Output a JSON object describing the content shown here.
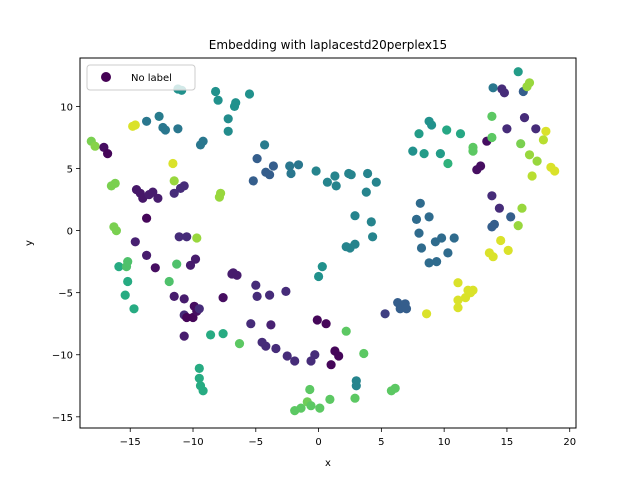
{
  "chart_data": {
    "type": "scatter",
    "title": "Embedding with laplacestd20perplex15",
    "xlabel": "x",
    "ylabel": "y",
    "xlim": [
      -19.0,
      20.5
    ],
    "ylim": [
      -15.9,
      13.9
    ],
    "xticks": [
      -15,
      -10,
      -5,
      0,
      5,
      10,
      15,
      20
    ],
    "yticks": [
      -15,
      -10,
      -5,
      0,
      5,
      10
    ],
    "legend": {
      "entries": [
        "No label"
      ],
      "placement": "top-left"
    },
    "colormap": "viridis",
    "points": [
      [
        -18.1,
        7.2,
        0.8
      ],
      [
        -17.8,
        6.8,
        0.82
      ],
      [
        -17.1,
        6.7,
        0.05
      ],
      [
        -16.8,
        6.2,
        0.02
      ],
      [
        -16.5,
        3.6,
        0.8
      ],
      [
        -16.2,
        3.8,
        0.8
      ],
      [
        -16.3,
        0.3,
        0.8
      ],
      [
        -16.1,
        0.0,
        0.8
      ],
      [
        -15.9,
        -2.9,
        0.62
      ],
      [
        -15.3,
        -2.9,
        0.72
      ],
      [
        -15.2,
        -2.5,
        0.72
      ],
      [
        -15.2,
        -4.1,
        0.62
      ],
      [
        -15.4,
        -5.2,
        0.62
      ],
      [
        -14.7,
        -6.3,
        0.62
      ],
      [
        -14.8,
        8.4,
        0.95
      ],
      [
        -14.6,
        8.5,
        0.95
      ],
      [
        -14.5,
        3.3,
        0.08
      ],
      [
        -14.2,
        3.0,
        0.08
      ],
      [
        -14.0,
        2.6,
        0.08
      ],
      [
        -13.7,
        1.0,
        0.02
      ],
      [
        -14.6,
        -0.9,
        0.12
      ],
      [
        -13.7,
        -2.0,
        0.1
      ],
      [
        -13.0,
        -3.0,
        0.05
      ],
      [
        -13.7,
        8.8,
        0.4
      ],
      [
        -13.5,
        2.9,
        0.1
      ],
      [
        -13.2,
        3.1,
        0.1
      ],
      [
        -12.8,
        2.6,
        0.1
      ],
      [
        -12.7,
        9.2,
        0.42
      ],
      [
        -12.4,
        8.3,
        0.4
      ],
      [
        -12.2,
        8.1,
        0.4
      ],
      [
        -11.6,
        5.4,
        0.95
      ],
      [
        -11.5,
        4.0,
        0.85
      ],
      [
        -11.9,
        -4.1,
        0.72
      ],
      [
        -11.2,
        8.2,
        0.4
      ],
      [
        -11.2,
        11.4,
        0.5
      ],
      [
        -10.9,
        11.3,
        0.5
      ],
      [
        -11.5,
        3.0,
        0.15
      ],
      [
        -11.0,
        3.4,
        0.15
      ],
      [
        -10.7,
        3.6,
        0.15
      ],
      [
        -11.1,
        -0.5,
        0.15
      ],
      [
        -10.5,
        -0.5,
        0.15
      ],
      [
        -11.3,
        -2.7,
        0.72
      ],
      [
        -11.5,
        -5.3,
        0.1
      ],
      [
        -10.7,
        -6.8,
        0.15
      ],
      [
        -10.7,
        -5.5,
        0.1
      ],
      [
        -10.5,
        -7.0,
        0.02
      ],
      [
        -10.7,
        -8.5,
        0.1
      ],
      [
        -10.2,
        -2.8,
        0.1
      ],
      [
        -9.8,
        -2.3,
        0.1
      ],
      [
        -10.0,
        -7.0,
        0.02
      ],
      [
        -9.9,
        -6.1,
        0.05
      ],
      [
        -9.7,
        -6.5,
        0.05
      ],
      [
        -9.5,
        -6.3,
        0.15
      ],
      [
        -9.7,
        -0.6,
        0.85
      ],
      [
        -9.4,
        6.9,
        0.4
      ],
      [
        -9.2,
        7.2,
        0.4
      ],
      [
        -9.5,
        -11.1,
        0.62
      ],
      [
        -9.5,
        -11.9,
        0.62
      ],
      [
        -9.4,
        -12.5,
        0.62
      ],
      [
        -9.2,
        -12.9,
        0.62
      ],
      [
        -8.6,
        -8.4,
        0.62
      ],
      [
        -8.2,
        11.2,
        0.5
      ],
      [
        -8.0,
        10.5,
        0.5
      ],
      [
        -7.8,
        3.0,
        0.85
      ],
      [
        -7.9,
        2.7,
        0.85
      ],
      [
        -7.6,
        -8.3,
        0.62
      ],
      [
        -7.6,
        -5.4,
        0.05
      ],
      [
        -7.2,
        9.0,
        0.48
      ],
      [
        -7.2,
        8.0,
        0.48
      ],
      [
        -6.9,
        -3.5,
        0.1
      ],
      [
        -6.7,
        10.0,
        0.5
      ],
      [
        -6.6,
        10.3,
        0.5
      ],
      [
        -6.8,
        -3.4,
        0.1
      ],
      [
        -6.5,
        -3.6,
        0.1
      ],
      [
        -6.3,
        -9.1,
        0.75
      ],
      [
        -5.5,
        11.0,
        0.5
      ],
      [
        -5.4,
        -7.5,
        0.15
      ],
      [
        -4.9,
        5.8,
        0.3
      ],
      [
        -5.2,
        4.0,
        0.3
      ],
      [
        -5.0,
        -4.4,
        0.15
      ],
      [
        -4.9,
        -5.3,
        0.15
      ],
      [
        -4.5,
        -9.0,
        0.15
      ],
      [
        -4.3,
        6.9,
        0.42
      ],
      [
        -4.2,
        4.7,
        0.3
      ],
      [
        -3.9,
        4.5,
        0.3
      ],
      [
        -3.6,
        5.2,
        0.3
      ],
      [
        -4.2,
        -9.3,
        0.15
      ],
      [
        -3.9,
        -5.2,
        0.15
      ],
      [
        -3.8,
        -7.6,
        0.12
      ],
      [
        -3.4,
        -9.5,
        0.15
      ],
      [
        -2.6,
        -4.9,
        0.15
      ],
      [
        -2.5,
        -10.1,
        0.15
      ],
      [
        -2.2,
        4.6,
        0.4
      ],
      [
        -2.3,
        5.2,
        0.4
      ],
      [
        -1.9,
        -10.5,
        0.15
      ],
      [
        -1.6,
        5.3,
        0.4
      ],
      [
        -1.9,
        -14.5,
        0.75
      ],
      [
        -1.4,
        -14.3,
        0.75
      ],
      [
        -0.9,
        -13.8,
        0.78
      ],
      [
        -0.6,
        -14.1,
        0.75
      ],
      [
        -0.7,
        -12.8,
        0.75
      ],
      [
        -0.6,
        -10.5,
        0.15
      ],
      [
        -0.2,
        4.8,
        0.45
      ],
      [
        -0.3,
        -10.0,
        0.15
      ],
      [
        -0.1,
        -7.2,
        0.02
      ],
      [
        0.0,
        -3.7,
        0.5
      ],
      [
        0.3,
        -2.9,
        0.5
      ],
      [
        0.6,
        -7.5,
        0.02
      ],
      [
        0.7,
        3.9,
        0.45
      ],
      [
        1.0,
        -10.8,
        0.02
      ],
      [
        1.3,
        4.4,
        0.45
      ],
      [
        1.3,
        -9.7,
        0.02
      ],
      [
        1.6,
        -10.1,
        0.02
      ],
      [
        1.4,
        3.6,
        0.45
      ],
      [
        0.1,
        -14.3,
        0.75
      ],
      [
        0.9,
        -13.6,
        0.75
      ],
      [
        2.2,
        -8.1,
        0.75
      ],
      [
        2.2,
        -1.3,
        0.45
      ],
      [
        2.5,
        -1.4,
        0.45
      ],
      [
        2.4,
        4.6,
        0.45
      ],
      [
        2.6,
        4.5,
        0.45
      ],
      [
        2.9,
        1.2,
        0.45
      ],
      [
        2.9,
        -1.1,
        0.45
      ],
      [
        3.0,
        -12.1,
        0.45
      ],
      [
        3.0,
        -12.5,
        0.45
      ],
      [
        2.9,
        -13.5,
        0.75
      ],
      [
        3.6,
        -9.9,
        0.75
      ],
      [
        3.8,
        3.1,
        0.45
      ],
      [
        3.9,
        4.6,
        0.45
      ],
      [
        4.2,
        0.7,
        0.45
      ],
      [
        4.3,
        -0.5,
        0.45
      ],
      [
        4.6,
        3.9,
        0.45
      ],
      [
        5.3,
        -6.7,
        0.2
      ],
      [
        5.8,
        -12.9,
        0.75
      ],
      [
        6.1,
        -12.7,
        0.75
      ],
      [
        6.3,
        -5.8,
        0.3
      ],
      [
        6.5,
        -6.3,
        0.3
      ],
      [
        6.9,
        -5.9,
        0.3
      ],
      [
        7.0,
        -6.3,
        0.3
      ],
      [
        7.5,
        6.4,
        0.5
      ],
      [
        7.8,
        0.9,
        0.35
      ],
      [
        8.1,
        2.2,
        0.35
      ],
      [
        8.0,
        7.8,
        0.55
      ],
      [
        8.0,
        -0.2,
        0.35
      ],
      [
        8.2,
        -1.4,
        0.35
      ],
      [
        8.4,
        6.2,
        0.55
      ],
      [
        8.6,
        -6.7,
        0.95
      ],
      [
        8.8,
        8.8,
        0.5
      ],
      [
        8.8,
        1.1,
        0.35
      ],
      [
        9.0,
        8.5,
        0.5
      ],
      [
        8.8,
        -2.6,
        0.35
      ],
      [
        9.4,
        -2.5,
        0.35
      ],
      [
        9.3,
        -0.9,
        0.35
      ],
      [
        9.8,
        -0.6,
        0.35
      ],
      [
        9.7,
        6.2,
        0.55
      ],
      [
        10.2,
        8.1,
        0.6
      ],
      [
        10.3,
        5.4,
        0.65
      ],
      [
        10.3,
        -1.8,
        0.35
      ],
      [
        10.8,
        -0.6,
        0.35
      ],
      [
        11.1,
        -6.2,
        0.95
      ],
      [
        11.1,
        -5.6,
        0.95
      ],
      [
        11.3,
        7.8,
        0.6
      ],
      [
        11.1,
        -4.2,
        0.95
      ],
      [
        11.7,
        -5.4,
        0.95
      ],
      [
        11.9,
        -4.8,
        0.95
      ],
      [
        12.3,
        -4.8,
        0.95
      ],
      [
        12.1,
        -5.0,
        0.95
      ],
      [
        12.3,
        6.7,
        0.75
      ],
      [
        12.3,
        6.4,
        0.75
      ],
      [
        12.6,
        4.9,
        0.05
      ],
      [
        12.9,
        5.2,
        0.05
      ],
      [
        13.4,
        7.2,
        0.05
      ],
      [
        13.6,
        -1.8,
        0.95
      ],
      [
        13.9,
        -2.1,
        0.95
      ],
      [
        13.9,
        11.5,
        0.4
      ],
      [
        13.8,
        9.2,
        0.75
      ],
      [
        13.8,
        7.5,
        0.75
      ],
      [
        13.8,
        2.8,
        0.15
      ],
      [
        13.8,
        0.3,
        0.3
      ],
      [
        14.0,
        0.5,
        0.3
      ],
      [
        14.4,
        1.8,
        0.15
      ],
      [
        14.5,
        -0.8,
        0.95
      ],
      [
        14.6,
        11.4,
        0.15
      ],
      [
        14.8,
        11.1,
        0.15
      ],
      [
        15.0,
        8.2,
        0.15
      ],
      [
        15.3,
        1.1,
        0.3
      ],
      [
        15.1,
        -1.6,
        0.95
      ],
      [
        15.9,
        12.8,
        0.55
      ],
      [
        15.9,
        0.4,
        0.85
      ],
      [
        16.1,
        7.0,
        0.8
      ],
      [
        16.3,
        11.2,
        0.3
      ],
      [
        16.4,
        9.1,
        0.15
      ],
      [
        16.2,
        1.8,
        0.85
      ],
      [
        16.6,
        11.6,
        0.85
      ],
      [
        16.8,
        11.9,
        0.85
      ],
      [
        16.8,
        6.1,
        0.85
      ],
      [
        17.0,
        4.4,
        0.9
      ],
      [
        17.3,
        8.2,
        0.15
      ],
      [
        17.4,
        5.6,
        0.85
      ],
      [
        17.9,
        7.3,
        0.9
      ],
      [
        18.1,
        8.0,
        0.95
      ],
      [
        18.5,
        5.1,
        0.95
      ],
      [
        18.8,
        4.8,
        0.95
      ]
    ]
  }
}
